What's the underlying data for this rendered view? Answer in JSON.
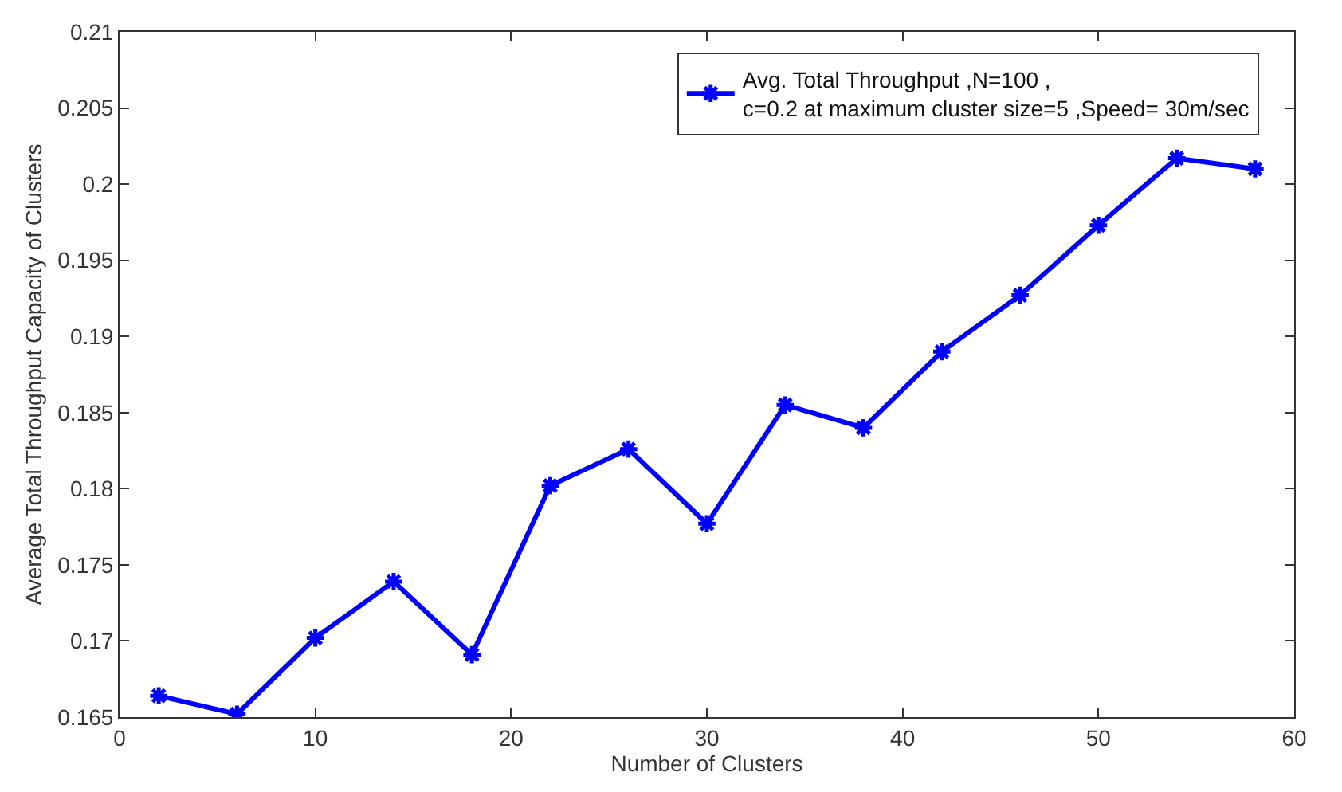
{
  "chart_data": {
    "type": "line",
    "xlabel": "Number of Clusters",
    "ylabel": "Average Total Throughput Capacity of Clusters",
    "x": [
      2,
      6,
      10,
      14,
      18,
      22,
      26,
      30,
      34,
      38,
      42,
      46,
      50,
      54,
      58
    ],
    "series": [
      {
        "name": "Avg. Total Throughput ,N=100 ,\nc=0.2 at maximum cluster size=5 ,Speed= 30m/sec",
        "color": "#0000ff",
        "values": [
          0.1664,
          0.1652,
          0.1702,
          0.1739,
          0.1691,
          0.1802,
          0.1826,
          0.1777,
          0.1855,
          0.184,
          0.189,
          0.1927,
          0.1973,
          0.2017,
          0.201
        ]
      }
    ],
    "xlim": [
      0,
      60
    ],
    "xticks": [
      0,
      10,
      20,
      30,
      40,
      50,
      60
    ],
    "ylim": [
      0.165,
      0.21
    ],
    "yticks": [
      0.165,
      0.17,
      0.175,
      0.18,
      0.185,
      0.19,
      0.195,
      0.2,
      0.205,
      0.21
    ],
    "legend": "top right",
    "marker": "cross",
    "line_style": "solid"
  }
}
